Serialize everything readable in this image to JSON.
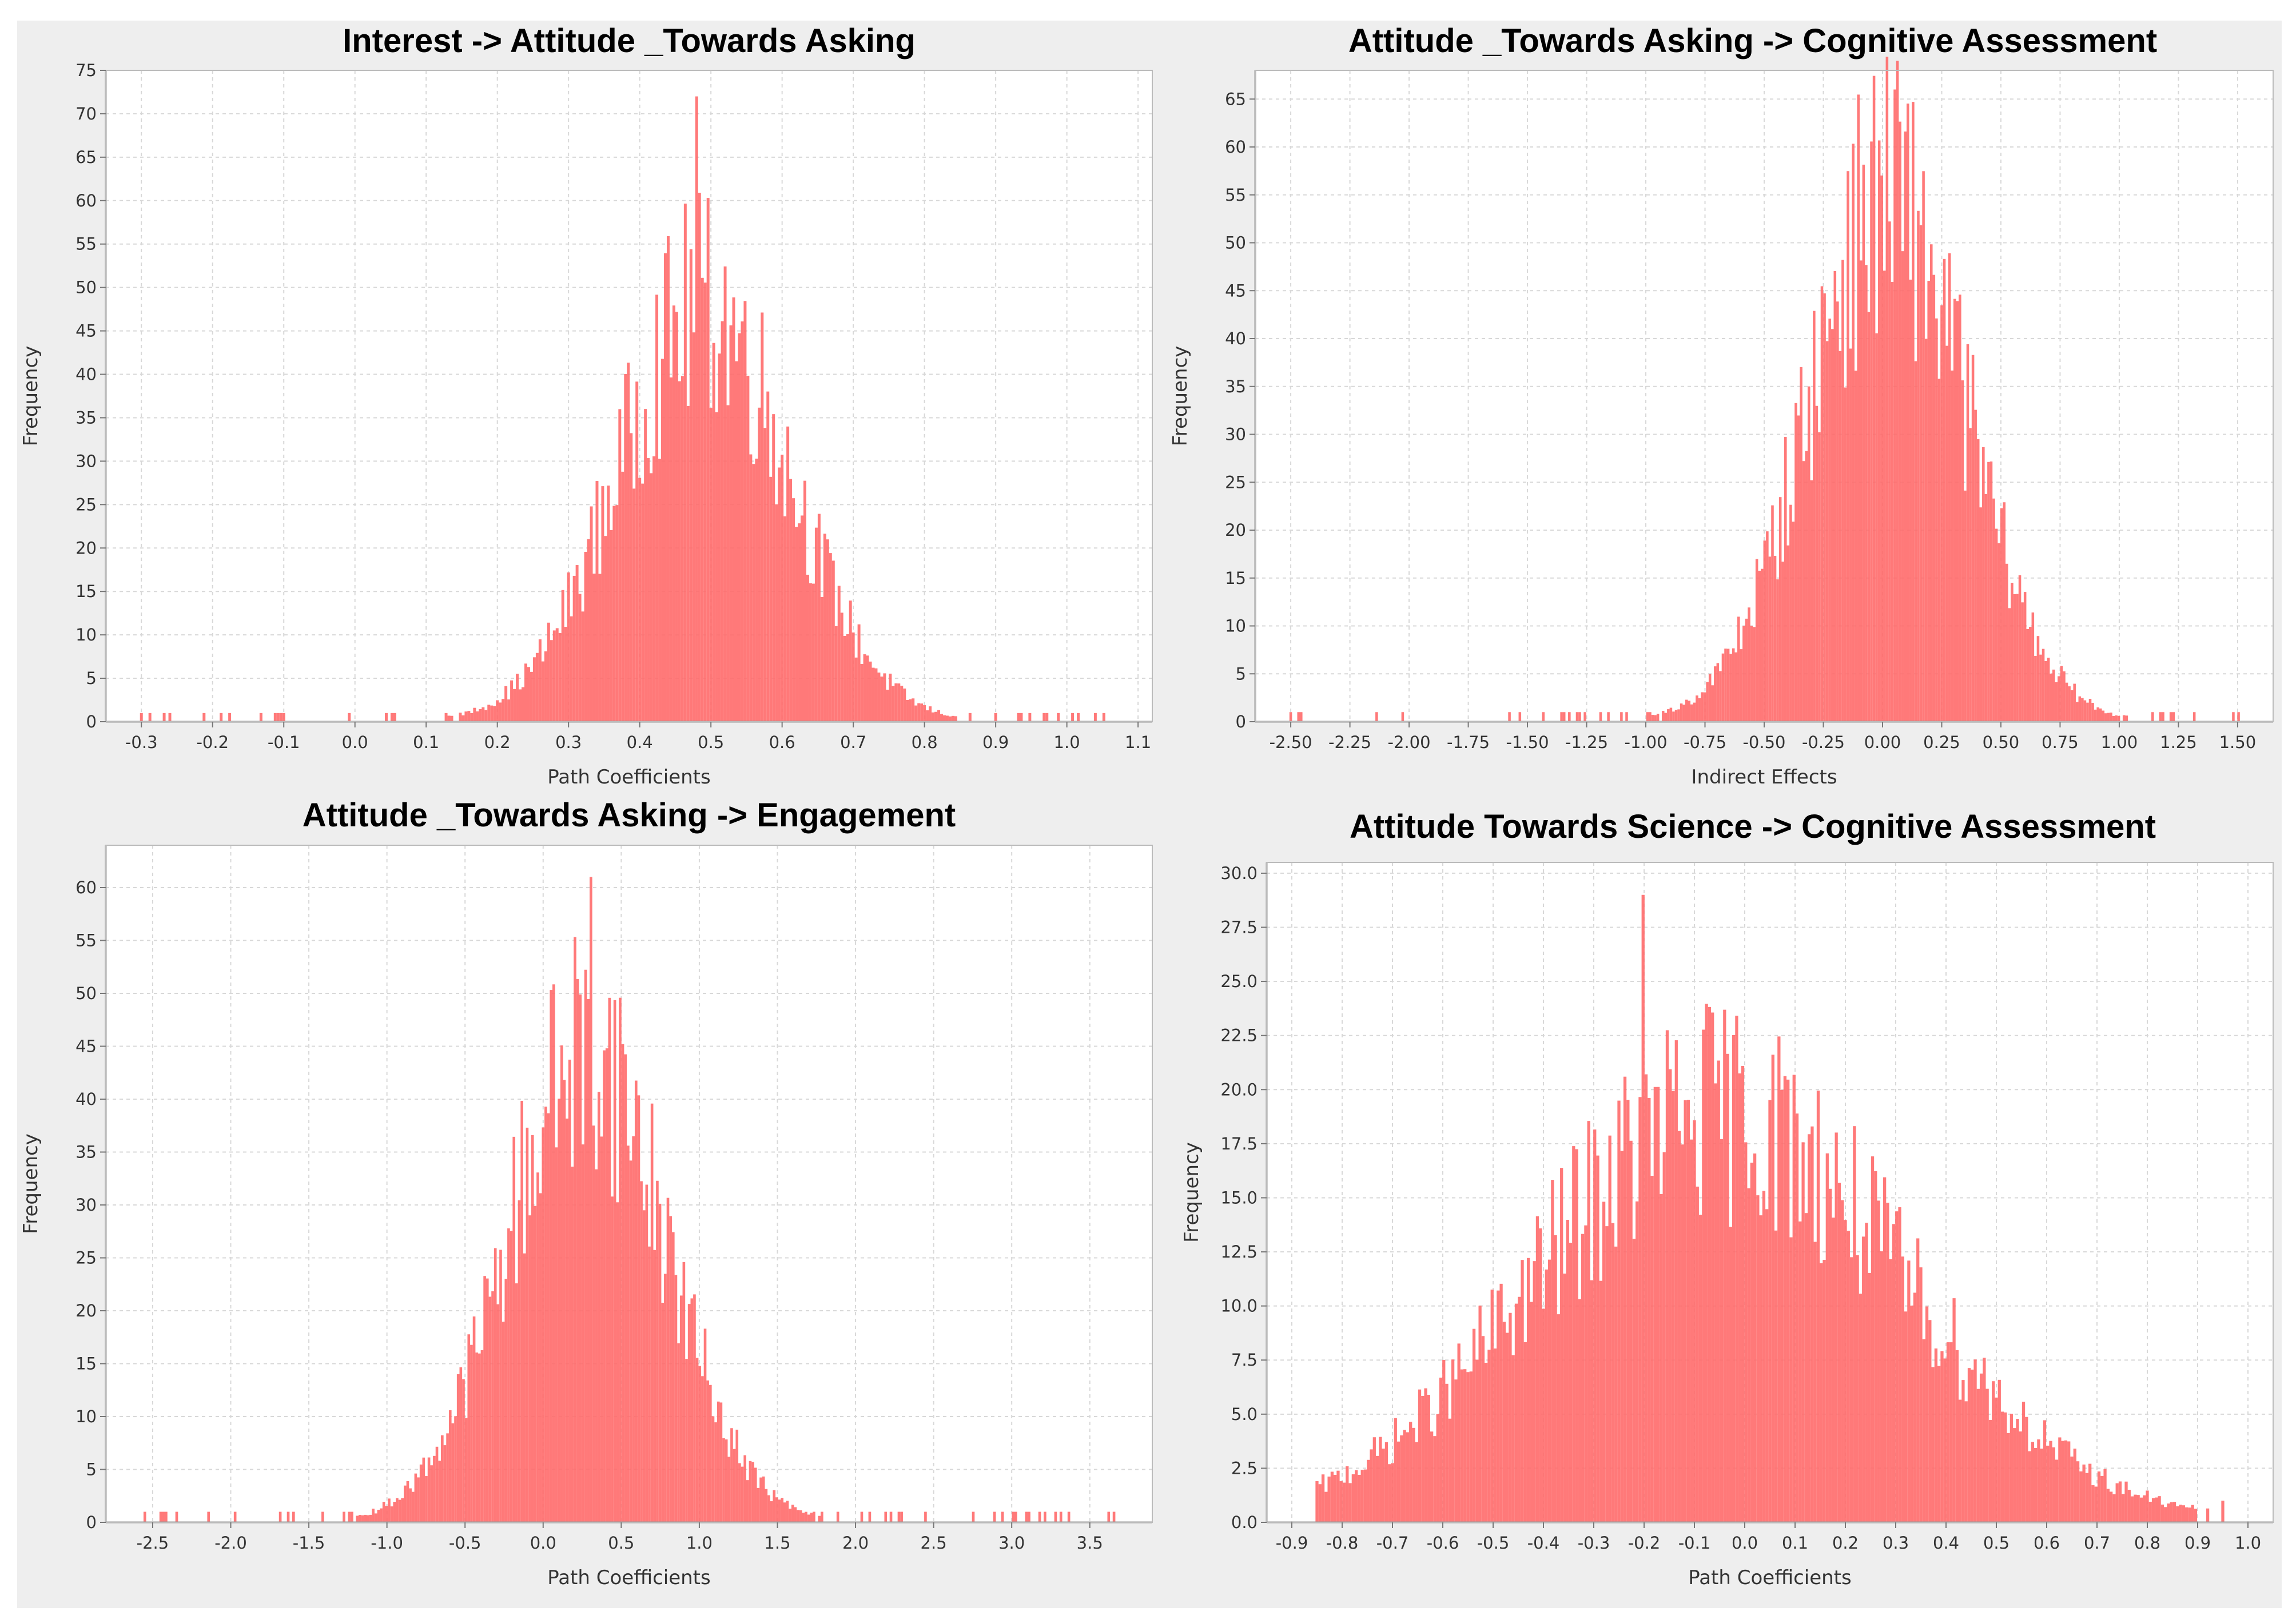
{
  "chart_data": [
    {
      "type": "bar",
      "title": "Interest -> Attitude _Towards Asking",
      "xlabel": "Path Coefficients",
      "ylabel": "Frequency",
      "xlim": [
        -0.35,
        1.12
      ],
      "ylim": [
        0,
        75
      ],
      "xticks": [
        -0.3,
        -0.2,
        -0.1,
        0.0,
        0.1,
        0.2,
        0.3,
        0.4,
        0.5,
        0.6,
        0.7,
        0.8,
        0.9,
        1.0,
        1.1
      ],
      "xtick_labels": [
        "-0.3",
        "-0.2",
        "-0.1",
        "0.0",
        "0.1",
        "0.2",
        "0.3",
        "0.4",
        "0.5",
        "0.6",
        "0.7",
        "0.8",
        "0.9",
        "1.0",
        "1.1"
      ],
      "yticks": [
        0,
        5,
        10,
        15,
        20,
        25,
        30,
        35,
        40,
        45,
        50,
        55,
        60,
        65,
        70,
        75
      ],
      "ytick_labels": [
        "0",
        "5",
        "10",
        "15",
        "20",
        "25",
        "30",
        "35",
        "40",
        "45",
        "50",
        "55",
        "60",
        "65",
        "70",
        "75"
      ],
      "distribution": {
        "mean": 0.49,
        "sd": 0.12,
        "peak": 48,
        "max": 72,
        "max_at": 0.48,
        "min_x": -0.3,
        "max_x": 1.05,
        "bin_width": 0.004
      },
      "grid": true,
      "color": "#ff6666"
    },
    {
      "type": "bar",
      "title": "Attitude _Towards Asking -> Cognitive Assessment",
      "xlabel": "Indirect Effects",
      "ylabel": "Frequency",
      "xlim": [
        -2.65,
        1.65
      ],
      "ylim": [
        0,
        68
      ],
      "xticks": [
        -2.5,
        -2.25,
        -2.0,
        -1.75,
        -1.5,
        -1.25,
        -1.0,
        -0.75,
        -0.5,
        -0.25,
        0.0,
        0.25,
        0.5,
        0.75,
        1.0,
        1.25,
        1.5
      ],
      "xtick_labels": [
        "-2.50",
        "-2.25",
        "-2.00",
        "-1.75",
        "-1.50",
        "-1.25",
        "-1.00",
        "-0.75",
        "-0.50",
        "-0.25",
        "0.00",
        "0.25",
        "0.50",
        "0.75",
        "1.00",
        "1.25",
        "1.50"
      ],
      "yticks": [
        0,
        5,
        10,
        15,
        20,
        25,
        30,
        35,
        40,
        45,
        50,
        55,
        60,
        65
      ],
      "ytick_labels": [
        "0",
        "5",
        "10",
        "15",
        "20",
        "25",
        "30",
        "35",
        "40",
        "45",
        "50",
        "55",
        "60",
        "65"
      ],
      "distribution": {
        "mean": 0.02,
        "sd": 0.33,
        "peak": 55,
        "max": 66,
        "max_at": 0.05,
        "min_x": -2.5,
        "max_x": 1.5,
        "bin_width": 0.011
      },
      "grid": true,
      "color": "#ff6666"
    },
    {
      "type": "bar",
      "title": "Attitude _Towards Asking -> Engagement",
      "xlabel": "Path Coefficients",
      "ylabel": "Frequency",
      "xlim": [
        -2.8,
        3.9
      ],
      "ylim": [
        0,
        64
      ],
      "xticks": [
        -2.5,
        -2.0,
        -1.5,
        -1.0,
        -0.5,
        0.0,
        0.5,
        1.0,
        1.5,
        2.0,
        2.5,
        3.0,
        3.5
      ],
      "xtick_labels": [
        "-2.5",
        "-2.0",
        "-1.5",
        "-1.0",
        "-0.5",
        "0.0",
        "0.5",
        "1.0",
        "1.5",
        "2.0",
        "2.5",
        "3.0",
        "3.5"
      ],
      "yticks": [
        0,
        5,
        10,
        15,
        20,
        25,
        30,
        35,
        40,
        45,
        50,
        55,
        60
      ],
      "ytick_labels": [
        "0",
        "5",
        "10",
        "15",
        "20",
        "25",
        "30",
        "35",
        "40",
        "45",
        "50",
        "55",
        "60"
      ],
      "distribution": {
        "mean": 0.28,
        "sd": 0.5,
        "peak": 45,
        "max": 61,
        "max_at": 0.3,
        "min_x": -2.55,
        "max_x": 3.65,
        "bin_width": 0.017
      },
      "grid": true,
      "color": "#ff6666"
    },
    {
      "type": "bar",
      "title": "Attitude Towards Science -> Cognitive Assessment",
      "xlabel": "Path Coefficients",
      "ylabel": "Frequency",
      "xlim": [
        -0.95,
        1.05
      ],
      "ylim": [
        0,
        30.5
      ],
      "xticks": [
        -0.9,
        -0.8,
        -0.7,
        -0.6,
        -0.5,
        -0.4,
        -0.3,
        -0.2,
        -0.1,
        0.0,
        0.1,
        0.2,
        0.3,
        0.4,
        0.5,
        0.6,
        0.7,
        0.8,
        0.9,
        1.0
      ],
      "xtick_labels": [
        "-0.9",
        "-0.8",
        "-0.7",
        "-0.6",
        "-0.5",
        "-0.4",
        "-0.3",
        "-0.2",
        "-0.1",
        "0.0",
        "0.1",
        "0.2",
        "0.3",
        "0.4",
        "0.5",
        "0.6",
        "0.7",
        "0.8",
        "0.9",
        "1.0"
      ],
      "yticks": [
        0,
        2.5,
        5,
        7.5,
        10,
        12.5,
        15,
        17.5,
        20,
        22.5,
        25,
        27.5,
        30
      ],
      "ytick_labels": [
        "0.0",
        "2.5",
        "5.0",
        "7.5",
        "10.0",
        "12.5",
        "15.0",
        "17.5",
        "20.0",
        "22.5",
        "25.0",
        "27.5",
        "30.0"
      ],
      "distribution": {
        "mean": -0.05,
        "sd": 0.36,
        "peak": 19,
        "max": 29,
        "max_at": -0.2,
        "min_x": -0.85,
        "max_x": 0.95,
        "bin_width": 0.006
      },
      "grid": true,
      "color": "#ff6666"
    }
  ]
}
